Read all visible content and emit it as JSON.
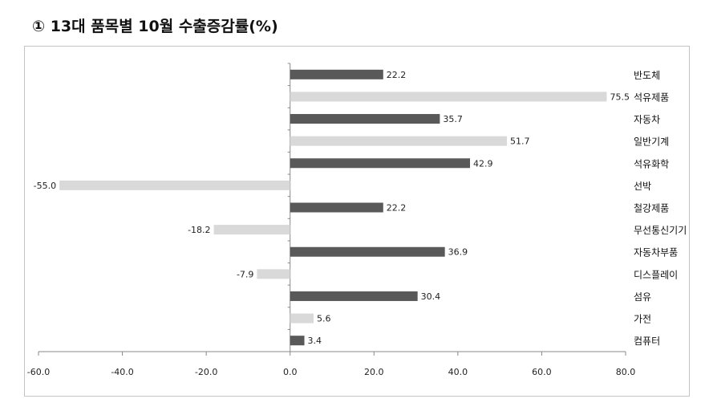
{
  "title": "① 13대 품목별 10월 수출증감률(%)",
  "chart_data": {
    "type": "bar",
    "orientation": "horizontal",
    "title": "① 13대 품목별 10월 수출증감률(%)",
    "categories": [
      "반도체",
      "석유제품",
      "자동차",
      "일반기계",
      "석유화학",
      "선박",
      "철강제품",
      "무선통신기기",
      "자동차부품",
      "디스플레이",
      "섬유",
      "가전",
      "컴퓨터"
    ],
    "values": [
      22.2,
      75.5,
      35.7,
      51.7,
      42.9,
      -55.0,
      22.2,
      -18.2,
      36.9,
      -7.9,
      30.4,
      5.6,
      3.4
    ],
    "value_labels": [
      "22.2",
      "75.5",
      "35.7",
      "51.7",
      "42.9",
      "-55.0",
      "22.2",
      "-18.2",
      "36.9",
      "-7.9",
      "30.4",
      "5.6",
      "3.4"
    ],
    "xlim": [
      -60,
      80
    ],
    "xticks": [
      -60,
      -40,
      -20,
      0,
      20,
      40,
      60,
      80
    ],
    "xtick_labels": [
      "-60.0",
      "-40.0",
      "-20.0",
      "0.0",
      "20.0",
      "40.0",
      "60.0",
      "80.0"
    ],
    "grid": false,
    "colors": {
      "dark": "#595959",
      "light": "#d9d9d9"
    },
    "bar_colors": [
      "dark",
      "light",
      "dark",
      "light",
      "dark",
      "light",
      "dark",
      "light",
      "dark",
      "light",
      "dark",
      "light",
      "dark"
    ]
  }
}
